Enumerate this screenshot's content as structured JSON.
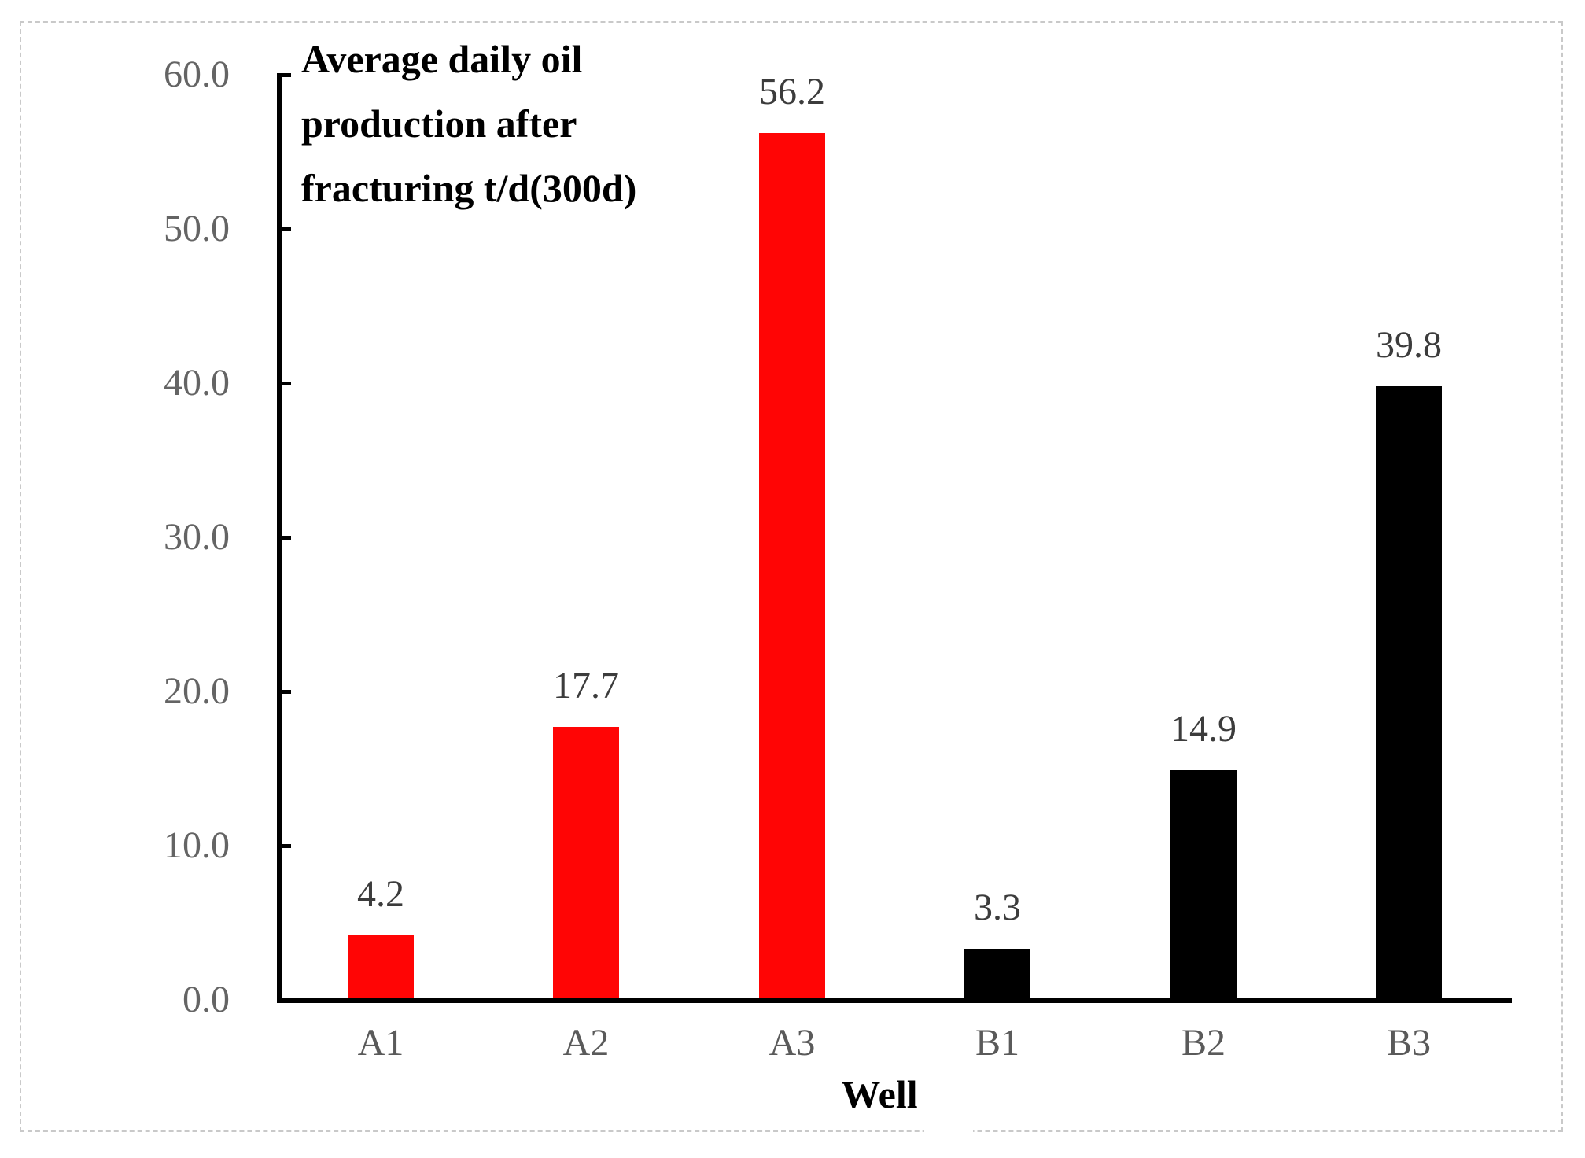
{
  "chart_data": {
    "type": "bar",
    "title": "Average daily oil production after fracturing t/d(300d)",
    "title_lines": [
      "Average daily oil",
      "production after",
      "fracturing t/d(300d)"
    ],
    "xlabel": "Well",
    "ylabel": "",
    "categories": [
      "A1",
      "A2",
      "A3",
      "B1",
      "B2",
      "B3"
    ],
    "values": [
      4.2,
      17.7,
      56.2,
      3.3,
      14.9,
      39.8
    ],
    "value_labels": [
      "4.2",
      "17.7",
      "56.2",
      "3.3",
      "14.9",
      "39.8"
    ],
    "bar_colors": [
      "#ff0505",
      "#ff0505",
      "#ff0505",
      "#000000",
      "#000000",
      "#000000"
    ],
    "series_note": "A wells red, B wells black",
    "y_ticks": [
      "0.0",
      "10.0",
      "20.0",
      "30.0",
      "40.0",
      "50.0",
      "60.0"
    ],
    "ylim": [
      0,
      60
    ],
    "grid": false,
    "legend": "none",
    "colors": {
      "red_bar": "#ff0505",
      "black_bar": "#000000",
      "axis": "#000000",
      "tick_label": "#646464",
      "value_label": "#3c3c3c",
      "category_label": "#5a5a5a",
      "title_text": "#000000",
      "frame_border": "#c9c9c9"
    }
  }
}
